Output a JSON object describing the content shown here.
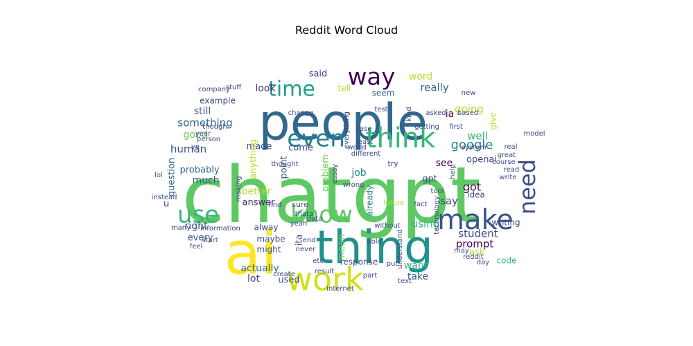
{
  "title": "Reddit Word Cloud",
  "palette": "viridis",
  "words": [
    {
      "text": "chatgpt",
      "color": "#5ec962"
    },
    {
      "text": "people",
      "color": "#31688e"
    },
    {
      "text": "ai",
      "color": "#fde725"
    },
    {
      "text": "thing",
      "color": "#21918c"
    },
    {
      "text": "work",
      "color": "#d0e11c"
    },
    {
      "text": "think",
      "color": "#35b779"
    },
    {
      "text": "make",
      "color": "#3b528b"
    },
    {
      "text": "know",
      "color": "#5ec962"
    },
    {
      "text": "way",
      "color": "#440154"
    },
    {
      "text": "even",
      "color": "#26828e"
    },
    {
      "text": "use",
      "color": "#35b779"
    },
    {
      "text": "time",
      "color": "#1f9e89"
    },
    {
      "text": "need",
      "color": "#3e4989"
    },
    {
      "text": "google",
      "color": "#26828e"
    },
    {
      "text": "something",
      "color": "#31688e"
    },
    {
      "text": "human",
      "color": "#3b528b"
    },
    {
      "text": "word",
      "color": "#b5de2b"
    },
    {
      "text": "really",
      "color": "#31688e"
    },
    {
      "text": "going",
      "color": "#b5de2b"
    },
    {
      "text": "well",
      "color": "#35b779"
    },
    {
      "text": "see",
      "color": "#440154"
    },
    {
      "text": "said",
      "color": "#3e4989"
    },
    {
      "text": "look",
      "color": "#482878"
    },
    {
      "text": "still",
      "color": "#3b528b"
    },
    {
      "text": "good",
      "color": "#6ece58"
    },
    {
      "text": "made",
      "color": "#3e4989"
    },
    {
      "text": "question",
      "color": "#31688e"
    },
    {
      "text": "probably",
      "color": "#31688e"
    },
    {
      "text": "much",
      "color": "#3b528b"
    },
    {
      "text": "better",
      "color": "#b5de2b"
    },
    {
      "text": "answer",
      "color": "#482878"
    },
    {
      "text": "job",
      "color": "#26828e"
    },
    {
      "text": "openai",
      "color": "#3e4989"
    },
    {
      "text": "say",
      "color": "#3e4989"
    },
    {
      "text": "got",
      "color": "#440154"
    },
    {
      "text": "gpt",
      "color": "#3b528b"
    },
    {
      "text": "using",
      "color": "#35b779"
    },
    {
      "text": "student",
      "color": "#3e4989"
    },
    {
      "text": "prompt",
      "color": "#440154"
    },
    {
      "text": "right",
      "color": "#3e4989"
    },
    {
      "text": "every",
      "color": "#3b528b"
    },
    {
      "text": "actually",
      "color": "#31688e"
    },
    {
      "text": "lot",
      "color": "#3e4989"
    },
    {
      "text": "want",
      "color": "#35b779"
    },
    {
      "text": "take",
      "color": "#31688e"
    },
    {
      "text": "mean",
      "color": "#6ece58"
    },
    {
      "text": "anything",
      "color": "#b5de2b"
    },
    {
      "text": "problem",
      "color": "#6ece58"
    },
    {
      "text": "example",
      "color": "#3e4989"
    },
    {
      "text": "already",
      "color": "#26828e"
    },
    {
      "text": "point",
      "color": "#3b528b"
    },
    {
      "text": "come",
      "color": "#3e4989"
    },
    {
      "text": "ia",
      "color": "#440154"
    },
    {
      "text": "seem",
      "color": "#31688e"
    },
    {
      "text": "tell",
      "color": "#b5de2b"
    },
    {
      "text": "give",
      "color": "#b5de2b"
    },
    {
      "text": "ask",
      "color": "#b5de2b"
    },
    {
      "text": "used",
      "color": "#3e4989"
    },
    {
      "text": "response",
      "color": "#3e4989"
    },
    {
      "text": "might",
      "color": "#3b528b"
    },
    {
      "text": "maybe",
      "color": "#3e4989"
    },
    {
      "text": "alway",
      "color": "#3e4989"
    },
    {
      "text": "writing",
      "color": "#3e4989"
    },
    {
      "text": "idea",
      "color": "#3e4989"
    },
    {
      "text": "code",
      "color": "#35b779"
    },
    {
      "text": "sure",
      "color": "#3e4989"
    },
    {
      "text": "ita",
      "color": "#3e4989"
    },
    {
      "text": "u",
      "color": "#3e4989"
    },
    {
      "text": "find",
      "color": "#3e4989"
    },
    {
      "text": "feel",
      "color": "#3e4989"
    },
    {
      "text": "different",
      "color": "#3e4989"
    },
    {
      "text": "try",
      "color": "#3e4989"
    },
    {
      "text": "future",
      "color": "#b5de2b"
    },
    {
      "text": "fact",
      "color": "#3e4989"
    },
    {
      "text": "tool",
      "color": "#3e4989"
    },
    {
      "text": "help",
      "color": "#3e4989"
    },
    {
      "text": "technology",
      "color": "#3e4989"
    },
    {
      "text": "read",
      "color": "#3e4989"
    },
    {
      "text": "write",
      "color": "#3e4989"
    },
    {
      "text": "course",
      "color": "#3e4989"
    },
    {
      "text": "great",
      "color": "#3e4989"
    },
    {
      "text": "model",
      "color": "#3e4989"
    },
    {
      "text": "system",
      "color": "#3e4989"
    },
    {
      "text": "day",
      "color": "#3e4989"
    },
    {
      "text": "reddit",
      "color": "#3e4989"
    },
    {
      "text": "may",
      "color": "#3e4989"
    },
    {
      "text": "understand",
      "color": "#3e4989"
    },
    {
      "text": "able",
      "color": "#3e4989"
    },
    {
      "text": "put",
      "color": "#3e4989"
    },
    {
      "text": "part",
      "color": "#3e4989"
    },
    {
      "text": "text",
      "color": "#3e4989"
    },
    {
      "text": "without",
      "color": "#3e4989"
    },
    {
      "text": "result",
      "color": "#3e4989"
    },
    {
      "text": "etc",
      "color": "#3e4989"
    },
    {
      "text": "create",
      "color": "#3e4989"
    },
    {
      "text": "internet",
      "color": "#3e4989"
    },
    {
      "text": "never",
      "color": "#3e4989"
    },
    {
      "text": "end",
      "color": "#3e4989"
    },
    {
      "text": "yeah",
      "color": "#3e4989"
    },
    {
      "text": "information",
      "color": "#3e4989"
    },
    {
      "text": "many",
      "color": "#3e4989"
    },
    {
      "text": "start",
      "color": "#3e4989"
    },
    {
      "text": "instead",
      "color": "#3e4989"
    },
    {
      "text": "making",
      "color": "#3e4989"
    },
    {
      "text": "thought",
      "color": "#3e4989"
    },
    {
      "text": "lol",
      "color": "#3e4989"
    },
    {
      "text": "data",
      "color": "#3e4989"
    },
    {
      "text": "thata",
      "color": "#3e4989"
    },
    {
      "text": "essay",
      "color": "#3e4989"
    },
    {
      "text": "wrong",
      "color": "#3e4989"
    },
    {
      "text": "least",
      "color": "#3e4989"
    },
    {
      "text": "world",
      "color": "#3e4989"
    },
    {
      "text": "case",
      "color": "#3e4989"
    },
    {
      "text": "everything",
      "color": "#3e4989"
    },
    {
      "text": "change",
      "color": "#3e4989"
    },
    {
      "text": "test",
      "color": "#3e4989"
    },
    {
      "text": "kind",
      "color": "#3e4989"
    },
    {
      "text": "getting",
      "color": "#3e4989"
    },
    {
      "text": "first",
      "color": "#3e4989"
    },
    {
      "text": "asked",
      "color": "#3e4989"
    },
    {
      "text": "based",
      "color": "#3e4989"
    },
    {
      "text": "new",
      "color": "#3e4989"
    },
    {
      "text": "though",
      "color": "#3e4989"
    },
    {
      "text": "year",
      "color": "#3e4989"
    },
    {
      "text": "person",
      "color": "#3e4989"
    },
    {
      "text": "ye",
      "color": "#3e4989"
    },
    {
      "text": "company",
      "color": "#3e4989"
    },
    {
      "text": "stuff",
      "color": "#3e4989"
    },
    {
      "text": "real",
      "color": "#3e4989"
    }
  ]
}
